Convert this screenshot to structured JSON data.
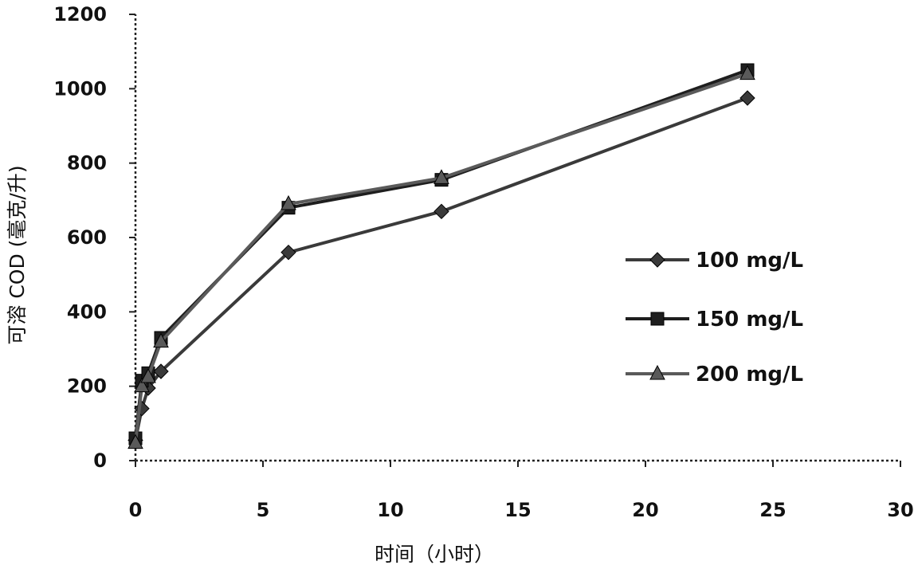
{
  "chart_data": {
    "type": "line",
    "title": "",
    "xlabel": "时间（小时）",
    "ylabel": "可溶 COD (毫克/升)",
    "xlim": [
      0,
      30
    ],
    "ylim": [
      0,
      1200
    ],
    "xticks": [
      0,
      5,
      10,
      15,
      20,
      25,
      30
    ],
    "yticks": [
      0,
      200,
      400,
      600,
      800,
      1000,
      1200
    ],
    "grid": false,
    "legend_position": "right",
    "series": [
      {
        "name": "100 mg/L",
        "color": "#3a3a3a",
        "marker": "diamond",
        "points": [
          [
            0,
            55
          ],
          [
            0.25,
            140
          ],
          [
            0.5,
            195
          ],
          [
            1,
            240
          ],
          [
            6,
            560
          ],
          [
            12,
            670
          ],
          [
            24,
            975
          ]
        ]
      },
      {
        "name": "150 mg/L",
        "color": "#1e1e1e",
        "marker": "square",
        "points": [
          [
            0,
            60
          ],
          [
            0.25,
            215
          ],
          [
            0.5,
            235
          ],
          [
            1,
            330
          ],
          [
            6,
            680
          ],
          [
            12,
            755
          ],
          [
            24,
            1050
          ]
        ]
      },
      {
        "name": "200 mg/L",
        "color": "#5a5a5a",
        "marker": "triangle",
        "points": [
          [
            0,
            48
          ],
          [
            0.25,
            200
          ],
          [
            0.5,
            225
          ],
          [
            1,
            320
          ],
          [
            6,
            690
          ],
          [
            12,
            760
          ],
          [
            24,
            1040
          ]
        ]
      }
    ]
  }
}
